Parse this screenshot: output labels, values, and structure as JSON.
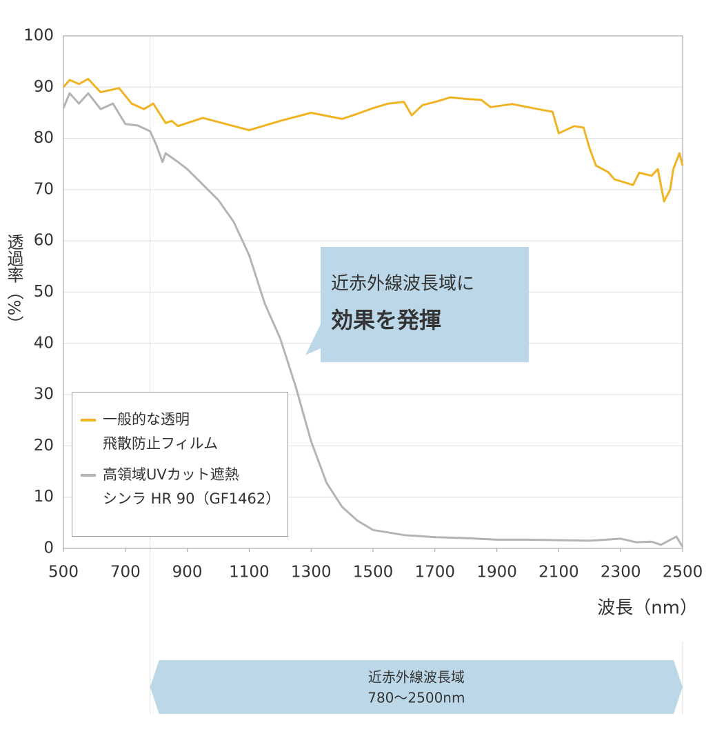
{
  "chart_data": {
    "type": "line",
    "ylabel": "透過率（%）",
    "xlabel": "波長（nm）",
    "xlim": [
      500,
      2500
    ],
    "ylim": [
      0,
      100
    ],
    "xticks": [
      500,
      700,
      900,
      1100,
      1300,
      1500,
      1700,
      1900,
      2100,
      2300,
      2500
    ],
    "yticks": [
      0,
      10,
      20,
      30,
      40,
      50,
      60,
      70,
      80,
      90,
      100
    ],
    "grid": true,
    "legend": "lower left",
    "callout": [
      "近赤外線波長域に",
      "効果を発揮"
    ],
    "band": {
      "label": "近赤外線波長域",
      "range_label": "780〜2500nm",
      "x": [
        780,
        2500
      ]
    },
    "series": [
      {
        "name": "一般的な透明\n飛散防止フィルム",
        "color": "#f0b323",
        "x": [
          500,
          520,
          550,
          580,
          620,
          680,
          720,
          760,
          790,
          830,
          850,
          870,
          950,
          1100,
          1200,
          1300,
          1400,
          1450,
          1500,
          1550,
          1600,
          1625,
          1660,
          1700,
          1750,
          1800,
          1850,
          1880,
          1950,
          2000,
          2050,
          2080,
          2100,
          2150,
          2180,
          2200,
          2220,
          2260,
          2280,
          2340,
          2360,
          2400,
          2420,
          2440,
          2460,
          2470,
          2490,
          2500
        ],
        "values": [
          90,
          91.4,
          90.6,
          91.6,
          89,
          89.8,
          86.8,
          85.7,
          86.8,
          83,
          83.4,
          82.4,
          84,
          81.6,
          83.4,
          85,
          83.8,
          84.8,
          85.9,
          86.8,
          87.1,
          84.5,
          86.5,
          87.1,
          88,
          87.7,
          87.5,
          86.1,
          86.7,
          86.1,
          85.5,
          85.2,
          81,
          82.4,
          82.1,
          78,
          74.7,
          73.4,
          72,
          70.9,
          73.3,
          72.7,
          74,
          67.7,
          70,
          74,
          77.1,
          74.7
        ]
      },
      {
        "name": "高領域UVカット遮熱\nシンラ HR 90（GF1462）",
        "color": "#b4b4b4",
        "x": [
          500,
          520,
          550,
          580,
          620,
          660,
          700,
          740,
          780,
          800,
          820,
          830,
          870,
          900,
          1000,
          1050,
          1100,
          1150,
          1200,
          1250,
          1300,
          1350,
          1400,
          1450,
          1500,
          1600,
          1700,
          1800,
          1900,
          2000,
          2100,
          2200,
          2300,
          2350,
          2400,
          2430,
          2480,
          2500
        ],
        "values": [
          85.9,
          88.8,
          86.8,
          88.8,
          85.7,
          86.8,
          82.8,
          82.5,
          81.4,
          78.7,
          75.4,
          77.1,
          75.4,
          74,
          68,
          63.7,
          57.2,
          47.8,
          41,
          31.6,
          20.9,
          12.8,
          8.1,
          5.4,
          3.6,
          2.6,
          2.2,
          2,
          1.7,
          1.7,
          1.6,
          1.5,
          1.9,
          1.2,
          1.3,
          0.7,
          2.3,
          0.3
        ]
      }
    ]
  }
}
